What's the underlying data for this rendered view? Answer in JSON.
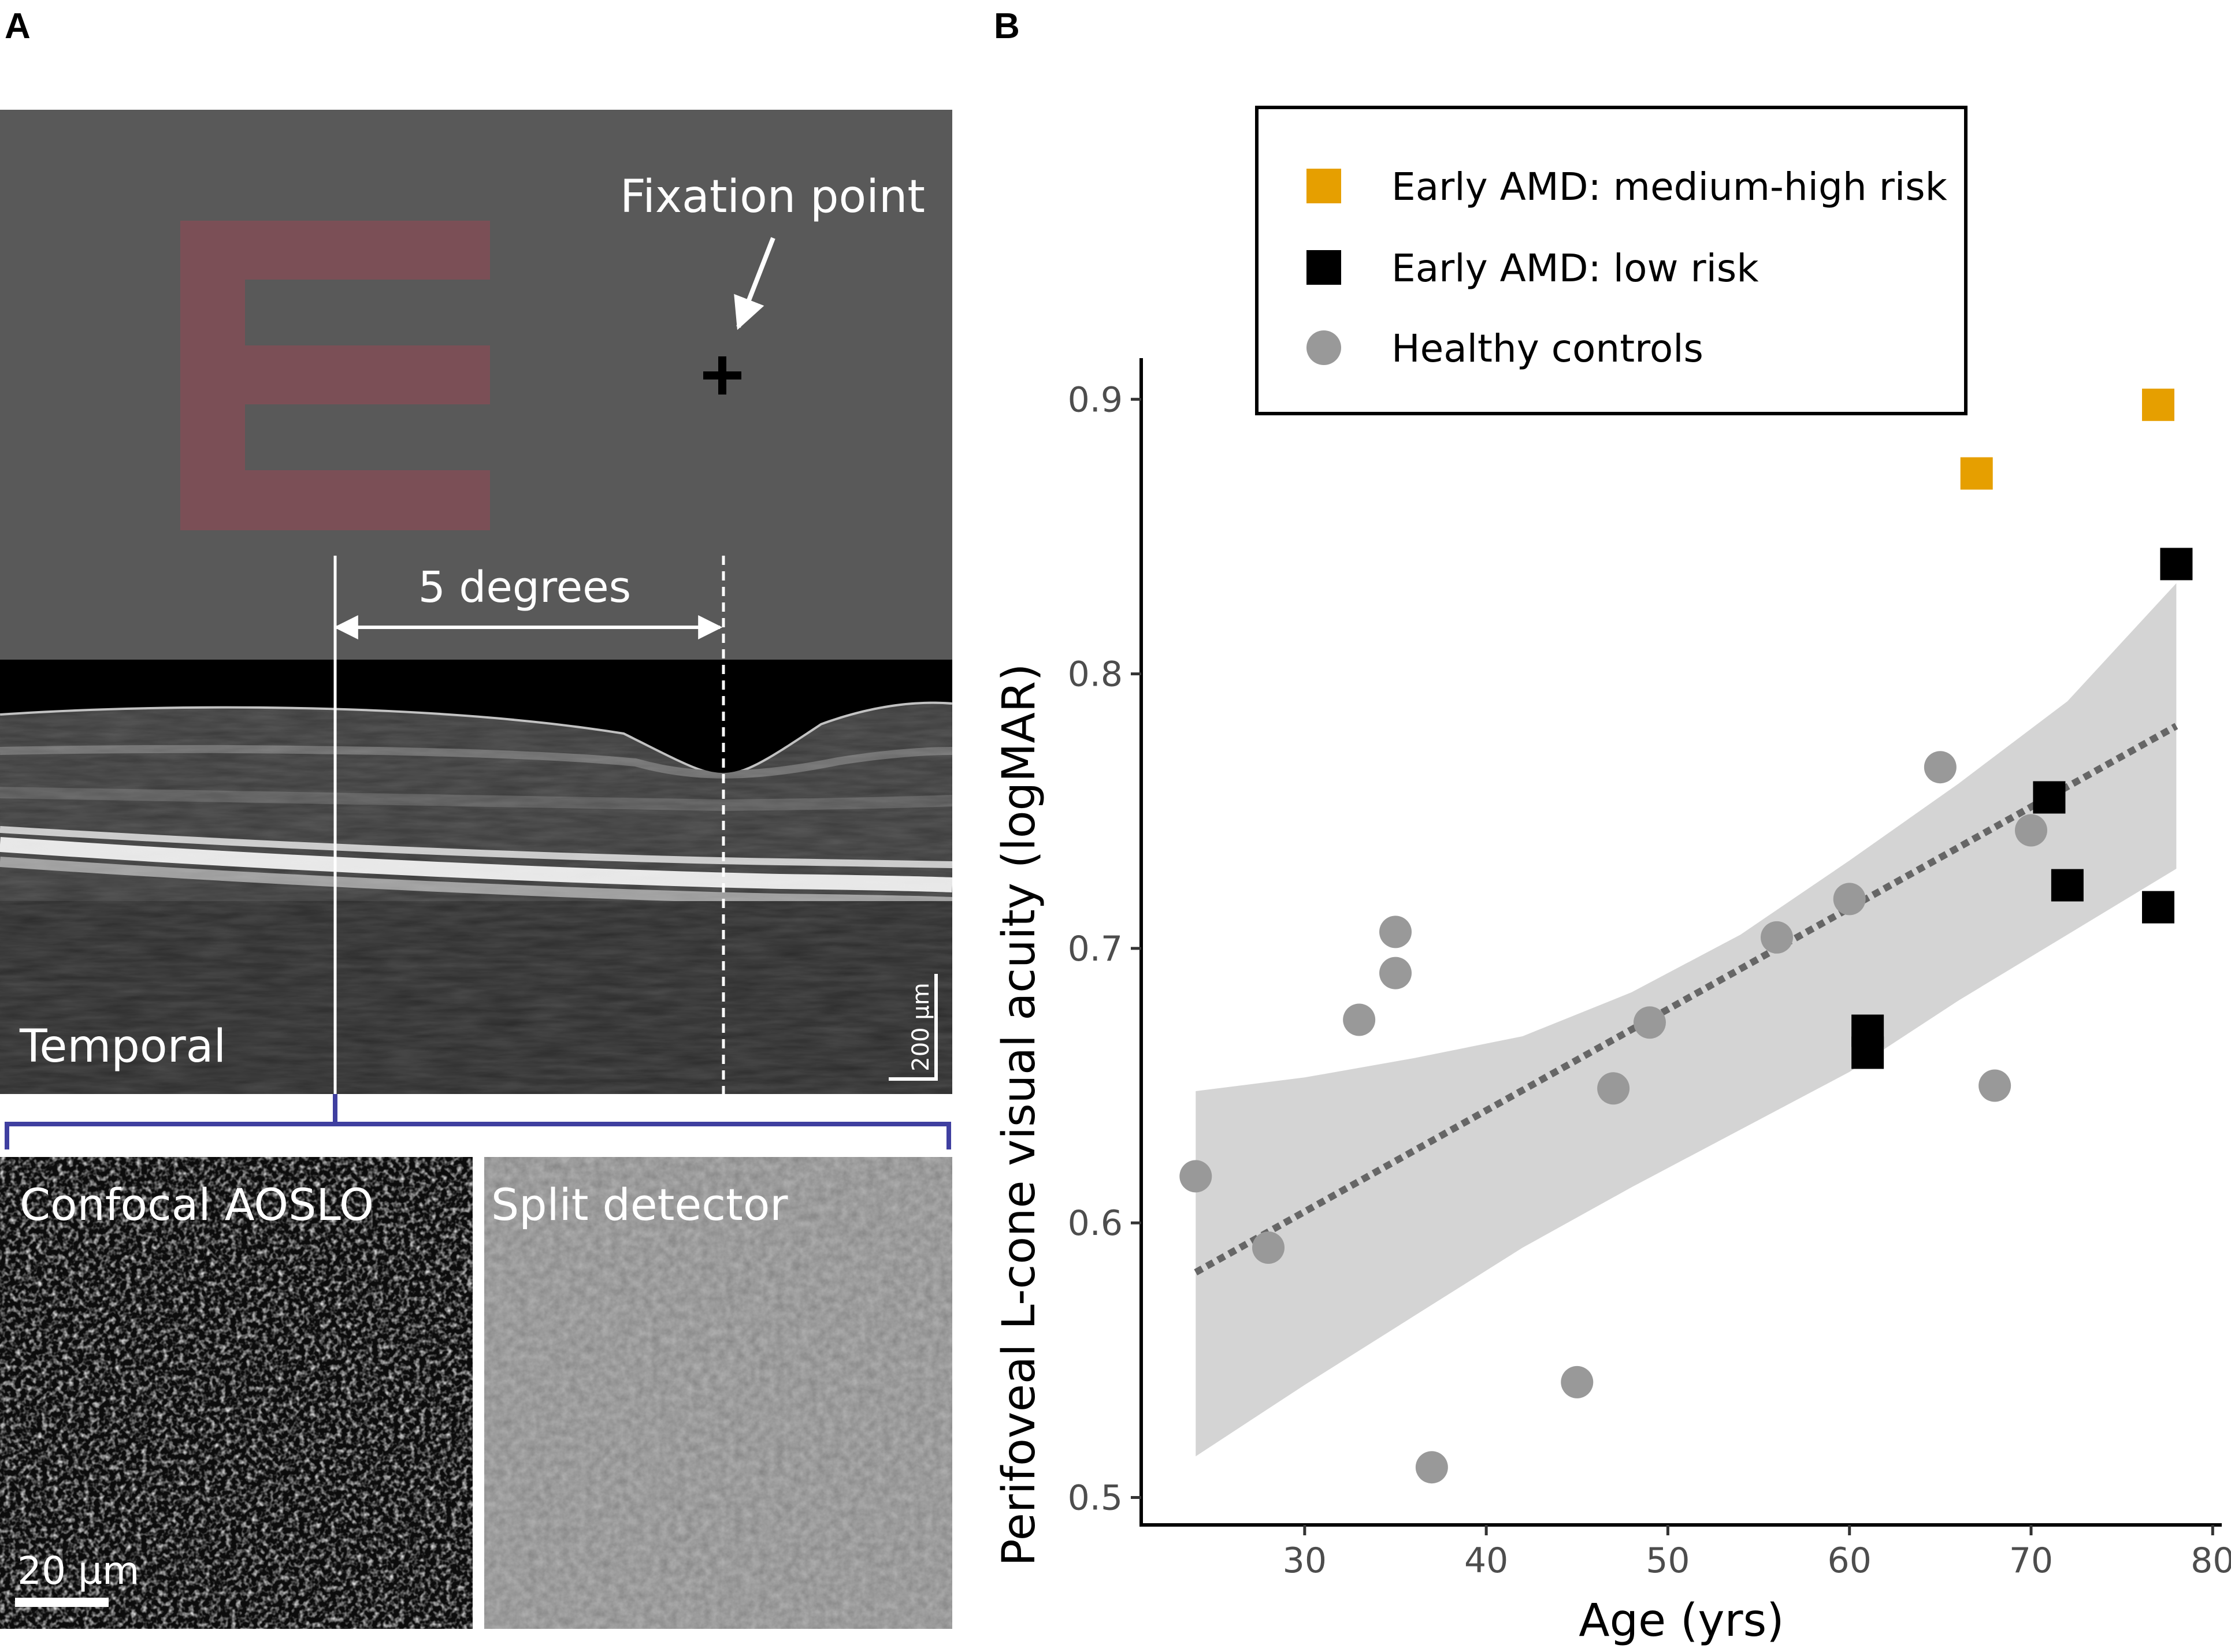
{
  "panel_a": {
    "letter": "A",
    "fixation_label": "Fixation point",
    "degrees_label": "5 degrees",
    "temporal_label": "Temporal",
    "oct_scale_label": "200 µm",
    "confocal_label": "Confocal AOSLO",
    "split_label": "Split detector",
    "aoslo_scale_label": "20 µm",
    "colors": {
      "background": "#595959",
      "letter_e": "#7b4f56",
      "bracket": "#3f3fa0"
    }
  },
  "chart_data": {
    "panel_letter": "B",
    "type": "scatter",
    "xlabel": "Age (yrs)",
    "ylabel": "Perifoveal L-cone visual acuity (logMAR)",
    "xlim": [
      21,
      80.5
    ],
    "ylim": [
      0.49,
      0.915
    ],
    "xticks": [
      30,
      40,
      50,
      60,
      70,
      80
    ],
    "yticks": [
      0.5,
      0.6,
      0.7,
      0.8,
      0.9
    ],
    "xtick_labels": [
      "30",
      "40",
      "50",
      "60",
      "70",
      "80"
    ],
    "ytick_labels": [
      "0.5",
      "0.6",
      "0.7",
      "0.8",
      "0.9"
    ],
    "legend_position": "top-center",
    "series": [
      {
        "name": "Early AMD: medium-high risk",
        "shape": "square",
        "color": "#e69f00",
        "points": [
          [
            67,
            0.873
          ],
          [
            77,
            0.898
          ]
        ]
      },
      {
        "name": "Early AMD: low risk",
        "shape": "square",
        "color": "#000000",
        "points": [
          [
            78,
            0.84
          ],
          [
            71,
            0.755
          ],
          [
            72,
            0.723
          ],
          [
            77,
            0.715
          ],
          [
            61,
            0.67
          ],
          [
            61,
            0.662
          ]
        ]
      },
      {
        "name": "Healthy controls",
        "shape": "circle",
        "color": "#999999",
        "points": [
          [
            24,
            0.617
          ],
          [
            28,
            0.591
          ],
          [
            33,
            0.674
          ],
          [
            35,
            0.706
          ],
          [
            35,
            0.691
          ],
          [
            37,
            0.511
          ],
          [
            45,
            0.542
          ],
          [
            47,
            0.649
          ],
          [
            49,
            0.673
          ],
          [
            56,
            0.704
          ],
          [
            60,
            0.718
          ],
          [
            65,
            0.766
          ],
          [
            68,
            0.65
          ],
          [
            70,
            0.743
          ]
        ]
      }
    ],
    "fit_line": {
      "style": "dotted",
      "color": "#666666",
      "x": [
        24,
        78
      ],
      "y": [
        0.582,
        0.781
      ]
    },
    "confidence_band": {
      "color": "#d4d4d4",
      "x": [
        24,
        30,
        36,
        42,
        48,
        54,
        60,
        66,
        72,
        78
      ],
      "upper": [
        0.648,
        0.653,
        0.66,
        0.668,
        0.684,
        0.705,
        0.732,
        0.76,
        0.79,
        0.833
      ],
      "lower": [
        0.515,
        0.541,
        0.566,
        0.591,
        0.613,
        0.634,
        0.655,
        0.681,
        0.705,
        0.729
      ]
    }
  }
}
